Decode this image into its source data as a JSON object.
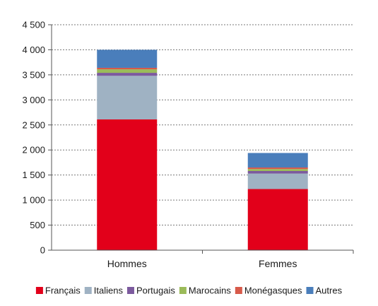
{
  "chart_data": {
    "type": "bar",
    "stacked": true,
    "categories": [
      "Hommes",
      "Femmes"
    ],
    "series": [
      {
        "name": "Français",
        "color": "#e2001a",
        "values": [
          2610,
          1220
        ]
      },
      {
        "name": "Italiens",
        "color": "#9fb2c3",
        "values": [
          870,
          310
        ]
      },
      {
        "name": "Portugais",
        "color": "#7c5a9e",
        "values": [
          60,
          50
        ]
      },
      {
        "name": "Marocains",
        "color": "#9bbb59",
        "values": [
          70,
          40
        ]
      },
      {
        "name": "Monégasques",
        "color": "#d75a4a",
        "values": [
          30,
          30
        ]
      },
      {
        "name": "Autres",
        "color": "#4a7ebb",
        "values": [
          360,
          290
        ]
      }
    ],
    "ylim": [
      0,
      4500
    ],
    "yticks": [
      0,
      500,
      1000,
      1500,
      2000,
      2500,
      3000,
      3500,
      4000,
      4500
    ],
    "ytick_labels": [
      "0",
      "500",
      "1 000",
      "1 500",
      "2 000",
      "2 500",
      "3 000",
      "3 500",
      "4 000",
      "4 500"
    ],
    "grid": true,
    "legend_position": "bottom",
    "title": "",
    "xlabel": "",
    "ylabel": ""
  }
}
